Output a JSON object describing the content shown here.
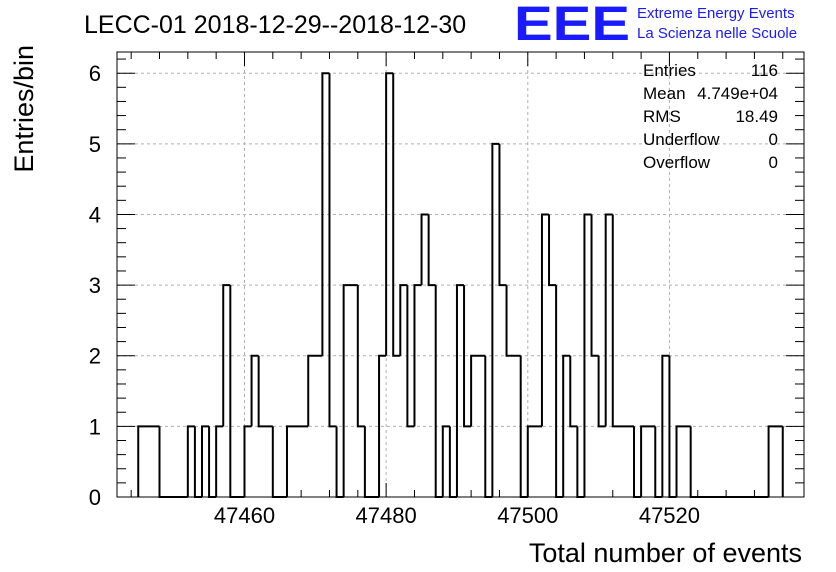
{
  "chart_data": {
    "type": "bar",
    "title": "LECC-01 2018-12-29--2018-12-30",
    "xlabel": "Total number of events",
    "ylabel": "Entries/bin",
    "xlim": [
      47442,
      47539
    ],
    "ylim": [
      0,
      6.3
    ],
    "bin_width": 1,
    "grid": true,
    "x_ticks": [
      47460,
      47480,
      47500,
      47520
    ],
    "y_ticks": [
      0,
      1,
      2,
      3,
      4,
      5,
      6
    ],
    "bins": [
      {
        "x": 47445,
        "y": 1
      },
      {
        "x": 47448,
        "y": 0
      },
      {
        "x": 47452,
        "y": 1
      },
      {
        "x": 47453,
        "y": 0
      },
      {
        "x": 47454,
        "y": 1
      },
      {
        "x": 47455,
        "y": 0
      },
      {
        "x": 47456,
        "y": 1
      },
      {
        "x": 47457,
        "y": 3
      },
      {
        "x": 47458,
        "y": 0
      },
      {
        "x": 47460,
        "y": 1
      },
      {
        "x": 47461,
        "y": 2
      },
      {
        "x": 47462,
        "y": 1
      },
      {
        "x": 47464,
        "y": 0
      },
      {
        "x": 47466,
        "y": 1
      },
      {
        "x": 47469,
        "y": 2
      },
      {
        "x": 47471,
        "y": 6
      },
      {
        "x": 47472,
        "y": 1
      },
      {
        "x": 47473,
        "y": 0
      },
      {
        "x": 47474,
        "y": 3
      },
      {
        "x": 47476,
        "y": 1
      },
      {
        "x": 47477,
        "y": 0
      },
      {
        "x": 47479,
        "y": 2
      },
      {
        "x": 47480,
        "y": 6
      },
      {
        "x": 47481,
        "y": 2
      },
      {
        "x": 47482,
        "y": 3
      },
      {
        "x": 47483,
        "y": 1
      },
      {
        "x": 47484,
        "y": 3
      },
      {
        "x": 47485,
        "y": 4
      },
      {
        "x": 47486,
        "y": 3
      },
      {
        "x": 47487,
        "y": 0
      },
      {
        "x": 47488,
        "y": 1
      },
      {
        "x": 47489,
        "y": 0
      },
      {
        "x": 47490,
        "y": 3
      },
      {
        "x": 47491,
        "y": 1
      },
      {
        "x": 47492,
        "y": 2
      },
      {
        "x": 47494,
        "y": 0
      },
      {
        "x": 47495,
        "y": 5
      },
      {
        "x": 47496,
        "y": 3
      },
      {
        "x": 47497,
        "y": 2
      },
      {
        "x": 47499,
        "y": 0
      },
      {
        "x": 47500,
        "y": 1
      },
      {
        "x": 47502,
        "y": 4
      },
      {
        "x": 47503,
        "y": 3
      },
      {
        "x": 47504,
        "y": 0
      },
      {
        "x": 47505,
        "y": 2
      },
      {
        "x": 47506,
        "y": 1
      },
      {
        "x": 47507,
        "y": 0
      },
      {
        "x": 47508,
        "y": 4
      },
      {
        "x": 47509,
        "y": 2
      },
      {
        "x": 47510,
        "y": 1
      },
      {
        "x": 47511,
        "y": 4
      },
      {
        "x": 47512,
        "y": 1
      },
      {
        "x": 47515,
        "y": 0
      },
      {
        "x": 47516,
        "y": 1
      },
      {
        "x": 47518,
        "y": 0
      },
      {
        "x": 47519,
        "y": 2
      },
      {
        "x": 47520,
        "y": 0
      },
      {
        "x": 47521,
        "y": 1
      },
      {
        "x": 47523,
        "y": 0
      },
      {
        "x": 47534,
        "y": 1
      },
      {
        "x": 47536,
        "y": 0
      }
    ],
    "stats": [
      {
        "label": "Entries",
        "value": "116"
      },
      {
        "label": "Mean",
        "value": "4.749e+04"
      },
      {
        "label": "RMS",
        "value": "18.49"
      },
      {
        "label": "Underflow",
        "value": "0"
      },
      {
        "label": "Overflow",
        "value": "0"
      }
    ],
    "logo": {
      "mark": "EEE",
      "line1": "Extreme Energy Events",
      "line2": "La Scienza nelle Scuole",
      "color": "#1a1aff"
    },
    "line_color": "#000000",
    "grid_color": "#b0b0b0"
  }
}
